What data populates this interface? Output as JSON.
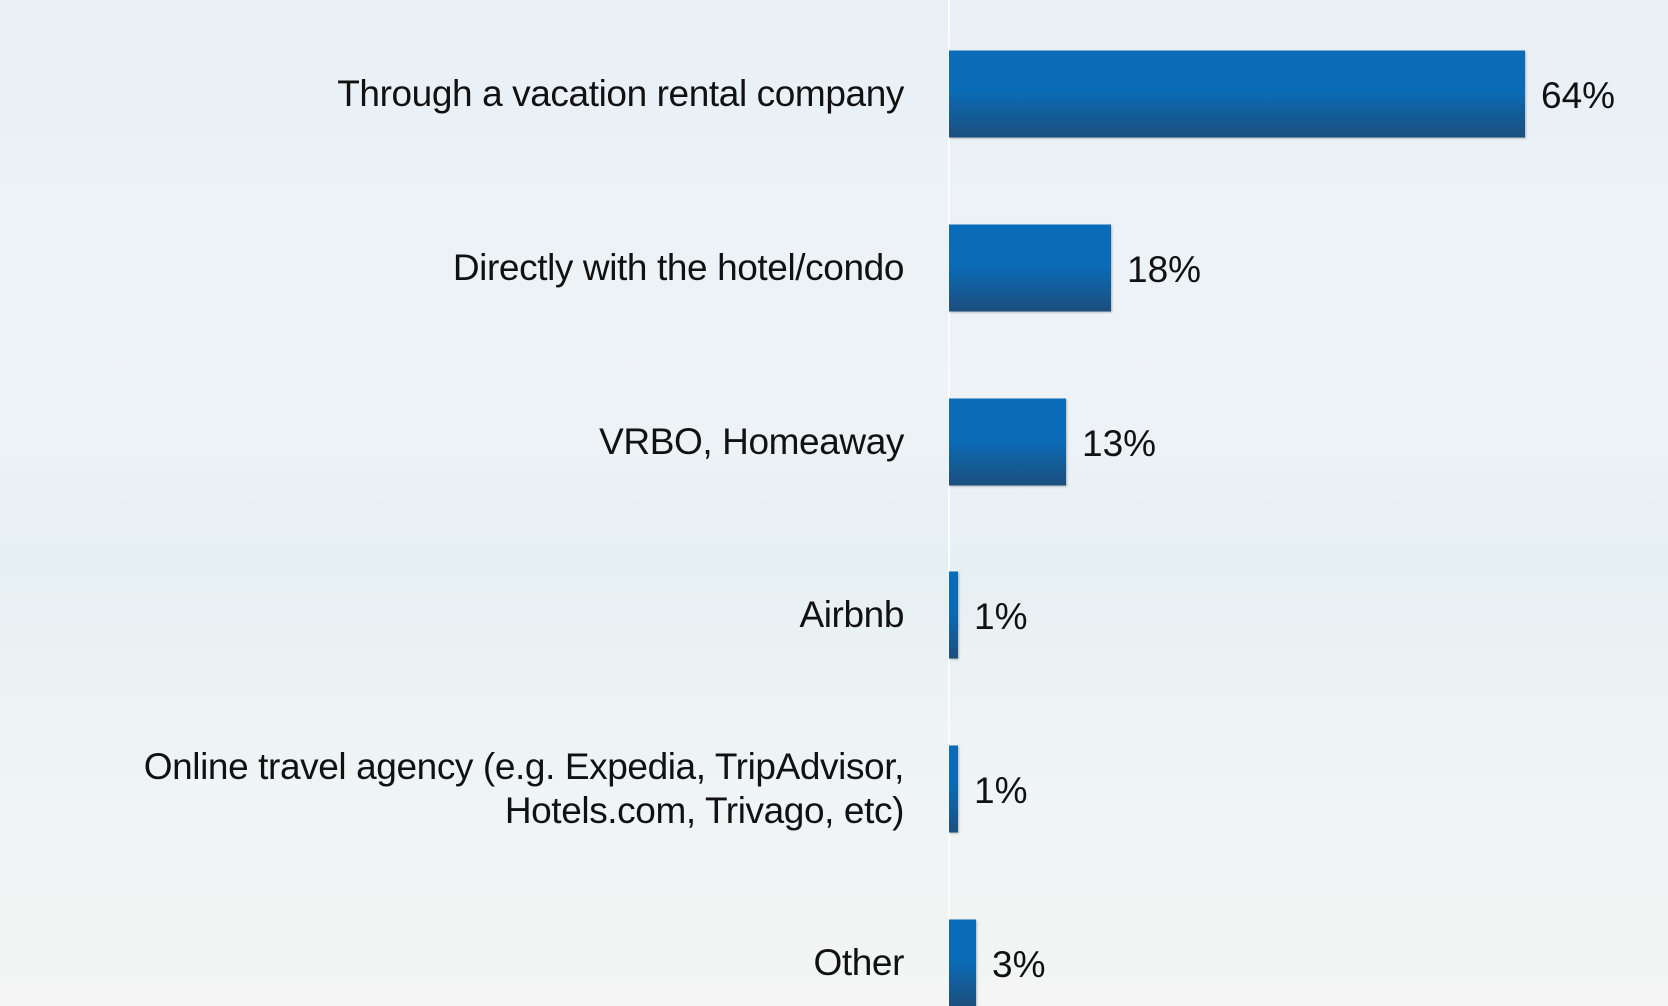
{
  "chart_data": {
    "type": "bar",
    "orientation": "horizontal",
    "categories": [
      "Through a vacation rental company",
      "Directly with the hotel/condo",
      "VRBO, Homeaway",
      "Airbnb",
      "Online travel agency (e.g. Expedia, TripAdvisor, Hotels.com, Trivago, etc)",
      "Other"
    ],
    "values": [
      64,
      18,
      13,
      1,
      1,
      3
    ],
    "value_labels": [
      "64%",
      "18%",
      "13%",
      "1%",
      "1%",
      "3%"
    ],
    "color": "#0a6cb8"
  }
}
